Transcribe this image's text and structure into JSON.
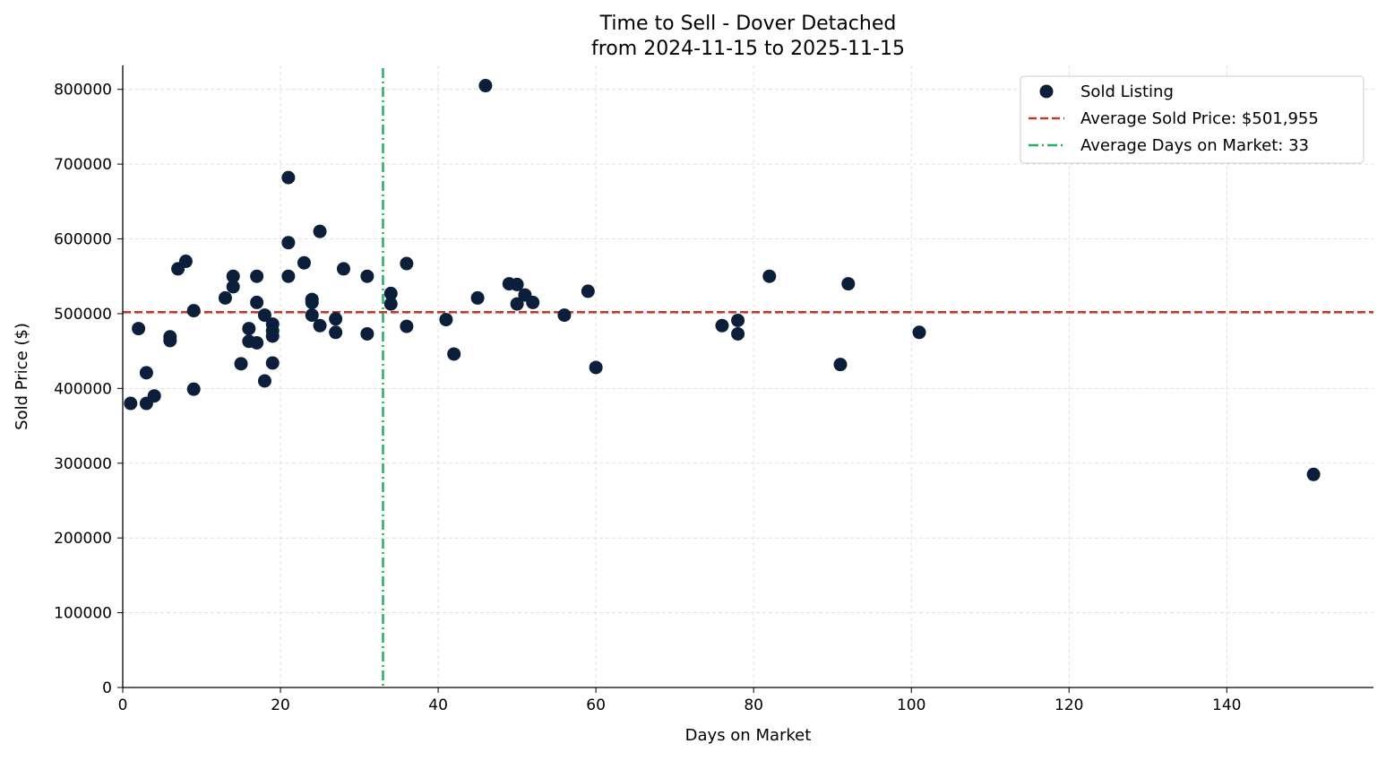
{
  "chart_data": {
    "type": "scatter",
    "title": "Time to Sell - Dover Detached",
    "subtitle": "from 2024-11-15 to 2025-11-15",
    "xlabel": "Days on Market",
    "ylabel": "Sold Price ($)",
    "xlim": [
      0,
      158.6
    ],
    "ylim": [
      0,
      832000
    ],
    "xticks": [
      0,
      20,
      40,
      60,
      80,
      100,
      120,
      140
    ],
    "yticks": [
      0,
      100000,
      200000,
      300000,
      400000,
      500000,
      600000,
      700000,
      800000
    ],
    "grid": true,
    "legend_position": "top-right",
    "colors": {
      "points": "#0b1f3a",
      "avg_price": "#c0392b",
      "avg_days": "#27ae60",
      "grid": "#d9d9d9"
    },
    "series": [
      {
        "name": "Sold Listing",
        "points": [
          [
            1,
            380000
          ],
          [
            2,
            480000
          ],
          [
            3,
            421000
          ],
          [
            3,
            380000
          ],
          [
            4,
            390000
          ],
          [
            6,
            469000
          ],
          [
            6,
            464000
          ],
          [
            7,
            560000
          ],
          [
            8,
            570000
          ],
          [
            9,
            504000
          ],
          [
            9,
            399000
          ],
          [
            13,
            521000
          ],
          [
            14,
            550000
          ],
          [
            14,
            536000
          ],
          [
            15,
            433000
          ],
          [
            16,
            480000
          ],
          [
            16,
            463000
          ],
          [
            17,
            550000
          ],
          [
            17,
            515000
          ],
          [
            17,
            461000
          ],
          [
            18,
            498000
          ],
          [
            18,
            410000
          ],
          [
            19,
            486000
          ],
          [
            19,
            477000
          ],
          [
            19,
            470000
          ],
          [
            19,
            434000
          ],
          [
            21,
            682000
          ],
          [
            21,
            595000
          ],
          [
            21,
            550000
          ],
          [
            23,
            568000
          ],
          [
            24,
            519000
          ],
          [
            24,
            515000
          ],
          [
            24,
            498000
          ],
          [
            25,
            610000
          ],
          [
            25,
            484000
          ],
          [
            27,
            493000
          ],
          [
            27,
            475000
          ],
          [
            28,
            560000
          ],
          [
            31,
            550000
          ],
          [
            31,
            473000
          ],
          [
            34,
            527000
          ],
          [
            34,
            513000
          ],
          [
            36,
            567000
          ],
          [
            36,
            483000
          ],
          [
            41,
            492000
          ],
          [
            42,
            446000
          ],
          [
            45,
            521000
          ],
          [
            46,
            805000
          ],
          [
            49,
            540000
          ],
          [
            50,
            539000
          ],
          [
            50,
            513000
          ],
          [
            51,
            525000
          ],
          [
            52,
            515000
          ],
          [
            56,
            498000
          ],
          [
            59,
            530000
          ],
          [
            60,
            428000
          ],
          [
            76,
            484000
          ],
          [
            78,
            491000
          ],
          [
            78,
            473000
          ],
          [
            82,
            550000
          ],
          [
            91,
            432000
          ],
          [
            92,
            540000
          ],
          [
            101,
            475000
          ],
          [
            151,
            285000
          ]
        ]
      }
    ],
    "reference_lines": {
      "avg_price": {
        "label": "Average Sold Price: $501,955",
        "value": 501955
      },
      "avg_days": {
        "label": "Average Days on Market: 33",
        "value": 33
      }
    }
  }
}
